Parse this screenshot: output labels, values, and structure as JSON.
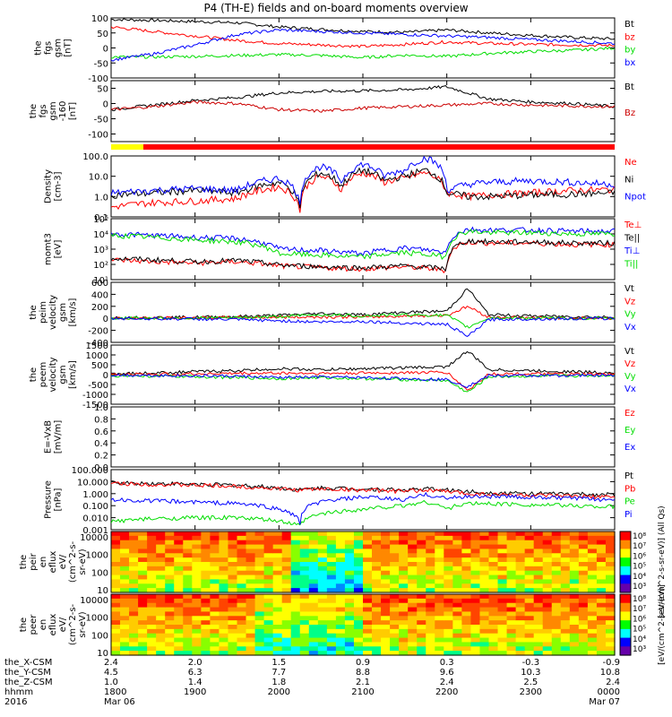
{
  "title": "P4 (TH-E) fields and on-board moments overview",
  "colors": {
    "black": "#000000",
    "red": "#ff0000",
    "blue": "#0000ff",
    "green": "#00dd00",
    "yellow": "#ffff00"
  },
  "chart_data": [
    {
      "id": "fgs_gsm",
      "type": "line",
      "ylabel": [
        "the",
        "fgs",
        "gsm",
        "[nT]"
      ],
      "ylim": [
        -100,
        100
      ],
      "yticks": [
        100,
        50,
        0,
        -50,
        -100
      ],
      "yticklabels": [
        "100",
        "50",
        "0",
        "-50",
        "-100"
      ],
      "x": [
        1800,
        1830,
        1900,
        1930,
        2000,
        2030,
        2100,
        2130,
        2200,
        2230,
        2300,
        2330,
        2400
      ],
      "series": [
        {
          "name": "Bt",
          "color": "#000000",
          "values": [
            95,
            92,
            88,
            84,
            70,
            62,
            55,
            52,
            60,
            50,
            42,
            35,
            30
          ]
        },
        {
          "name": "bz",
          "color": "#ff0000",
          "values": [
            70,
            55,
            40,
            25,
            15,
            10,
            5,
            12,
            20,
            15,
            12,
            10,
            8
          ]
        },
        {
          "name": "by",
          "color": "#00dd00",
          "values": [
            -30,
            -30,
            -28,
            -25,
            -22,
            -25,
            -32,
            -24,
            -28,
            -18,
            -12,
            -8,
            0
          ]
        },
        {
          "name": "bx",
          "color": "#0000ff",
          "values": [
            -40,
            -20,
            10,
            45,
            60,
            55,
            50,
            45,
            40,
            35,
            28,
            22,
            15
          ]
        }
      ]
    },
    {
      "id": "fgs_gsm_m160",
      "type": "line",
      "ylabel": [
        "the",
        "fgs",
        "gsm",
        "-160",
        "[nT]"
      ],
      "ylim": [
        -125,
        75
      ],
      "yticks": [
        50,
        0,
        -50,
        -100
      ],
      "yticklabels": [
        "50",
        "0",
        "-50",
        "-100"
      ],
      "x": [
        1800,
        1830,
        1900,
        1930,
        2000,
        2030,
        2100,
        2130,
        2200,
        2230,
        2300,
        2330,
        2400
      ],
      "series": [
        {
          "name": "Bt",
          "color": "#000000",
          "values": [
            -20,
            -5,
            10,
            20,
            35,
            40,
            42,
            45,
            55,
            15,
            5,
            0,
            -10
          ]
        },
        {
          "name": "Bz",
          "color": "#cc0000",
          "values": [
            -20,
            -10,
            5,
            0,
            -20,
            -25,
            -15,
            -10,
            -5,
            0,
            -5,
            -8,
            -10
          ]
        }
      ]
    },
    {
      "id": "density",
      "type": "line",
      "ylabel": [
        "Density",
        "[cm-3]"
      ],
      "ylog": true,
      "ylim": [
        0.1,
        100.0
      ],
      "yticks": [
        100.0,
        10.0,
        1.0,
        0.1
      ],
      "yticklabels": [
        "100.0",
        "10.0",
        "1.0",
        "0.1"
      ],
      "x": [
        1800,
        1830,
        1900,
        1930,
        2000,
        2015,
        2030,
        2045,
        2100,
        2115,
        2130,
        2145,
        2200,
        2215,
        2230,
        2300,
        2330,
        2400
      ],
      "series": [
        {
          "name": "Ne",
          "color": "#ff0000",
          "values": [
            0.3,
            0.5,
            0.6,
            0.8,
            3.0,
            0.2,
            10,
            2,
            15,
            5,
            8,
            15,
            1.5,
            1.0,
            1.2,
            1.5,
            2.0,
            2.2
          ]
        },
        {
          "name": "Ni",
          "color": "#000000",
          "values": [
            1.2,
            1.5,
            2.0,
            1.5,
            5.0,
            0.2,
            15,
            3,
            20,
            6,
            10,
            20,
            1.5,
            1.0,
            1.0,
            1.2,
            1.3,
            1.5
          ]
        },
        {
          "name": "Npot",
          "color": "#0000ff",
          "values": [
            1.5,
            2.0,
            2.5,
            2.0,
            8.0,
            0.3,
            30,
            5,
            40,
            10,
            20,
            80,
            2.0,
            4.0,
            5.0,
            6.0,
            5.0,
            4.0
          ]
        }
      ]
    },
    {
      "id": "mom_t3",
      "type": "line",
      "ylabel": [
        "momt3",
        "[eV]"
      ],
      "ylog": true,
      "ylim": [
        10,
        100000
      ],
      "yticks": [
        100000,
        10000,
        1000,
        100,
        10
      ],
      "yticklabels": [
        "10⁵",
        "10⁴",
        "10³",
        "10²",
        "10¹"
      ],
      "x": [
        1800,
        1830,
        1900,
        1930,
        2000,
        2030,
        2100,
        2130,
        2200,
        2215,
        2230,
        2300,
        2330,
        2400
      ],
      "series": [
        {
          "name": "Te⊥",
          "color": "#ff0000",
          "values": [
            200,
            150,
            120,
            150,
            80,
            60,
            50,
            70,
            40,
            3000,
            2500,
            2500,
            2000,
            2000
          ]
        },
        {
          "name": "Te||",
          "color": "#000000",
          "values": [
            250,
            200,
            150,
            180,
            90,
            70,
            60,
            80,
            50,
            3500,
            3000,
            3000,
            2500,
            2500
          ]
        },
        {
          "name": "Ti⊥",
          "color": "#0000ff",
          "values": [
            10000,
            8000,
            6000,
            5000,
            1000,
            800,
            500,
            1200,
            600,
            20000,
            18000,
            18000,
            15000,
            15000
          ]
        },
        {
          "name": "Ti||",
          "color": "#00dd00",
          "values": [
            8000,
            6000,
            4000,
            3000,
            500,
            400,
            300,
            600,
            300,
            15000,
            12000,
            12000,
            10000,
            10000
          ]
        }
      ]
    },
    {
      "id": "peim_velocity",
      "type": "line",
      "ylabel": [
        "the",
        "peim",
        "velocity",
        "gsm",
        "[km/s]"
      ],
      "ylim": [
        -400,
        600
      ],
      "yticks": [
        600,
        400,
        200,
        0,
        -200,
        -400
      ],
      "yticklabels": [
        "600",
        "400",
        "200",
        "0",
        "-200",
        "-400"
      ],
      "x": [
        1800,
        1830,
        1900,
        1930,
        2000,
        2030,
        2100,
        2130,
        2200,
        2215,
        2230,
        2300,
        2330,
        2400
      ],
      "series": [
        {
          "name": "Vt",
          "color": "#000000",
          "values": [
            10,
            15,
            20,
            30,
            50,
            80,
            60,
            100,
            120,
            500,
            60,
            40,
            30,
            20
          ]
        },
        {
          "name": "Vz",
          "color": "#ff0000",
          "values": [
            0,
            5,
            10,
            15,
            20,
            25,
            20,
            40,
            50,
            200,
            20,
            10,
            5,
            0
          ]
        },
        {
          "name": "Vy",
          "color": "#00dd00",
          "values": [
            0,
            5,
            5,
            10,
            30,
            60,
            40,
            60,
            50,
            -150,
            10,
            5,
            0,
            0
          ]
        },
        {
          "name": "Vx",
          "color": "#0000ff",
          "values": [
            0,
            -5,
            -10,
            -20,
            -40,
            -60,
            -50,
            -80,
            -100,
            -300,
            -20,
            -10,
            -5,
            0
          ]
        }
      ]
    },
    {
      "id": "peem_velocity",
      "type": "line",
      "ylabel": [
        "the",
        "peem",
        "velocity",
        "gsm",
        "[km/s]"
      ],
      "ylim": [
        -1500,
        1500
      ],
      "yticks": [
        1500,
        1000,
        500,
        0,
        -500,
        -1000,
        -1500
      ],
      "yticklabels": [
        "1500",
        "1000",
        "500",
        "0",
        "-500",
        "-1000",
        "-1500"
      ],
      "x": [
        1800,
        1830,
        1900,
        1930,
        2000,
        2030,
        2100,
        2130,
        2200,
        2215,
        2230,
        2300,
        2330,
        2400
      ],
      "series": [
        {
          "name": "Vt",
          "color": "#000000",
          "values": [
            50,
            80,
            150,
            200,
            300,
            250,
            300,
            350,
            400,
            1200,
            250,
            200,
            150,
            100
          ]
        },
        {
          "name": "Vz",
          "color": "#ff0000",
          "values": [
            0,
            20,
            40,
            60,
            80,
            60,
            80,
            100,
            120,
            -800,
            40,
            30,
            20,
            10
          ]
        },
        {
          "name": "Vy",
          "color": "#00dd00",
          "values": [
            -50,
            -80,
            -100,
            -150,
            -200,
            -150,
            -200,
            -250,
            -300,
            -900,
            -100,
            -80,
            -60,
            -40
          ]
        },
        {
          "name": "Vx",
          "color": "#0000ff",
          "values": [
            -20,
            -40,
            -60,
            -80,
            -150,
            -120,
            -150,
            -200,
            -250,
            -600,
            -60,
            -50,
            -40,
            -30
          ]
        }
      ]
    },
    {
      "id": "efield",
      "type": "line",
      "ylabel": [
        "E=-VxB",
        "[mV/m]"
      ],
      "ylim": [
        0.0,
        1.0
      ],
      "yticks": [
        1.0,
        0.8,
        0.6,
        0.4,
        0.2,
        0.0
      ],
      "yticklabels": [
        "1.0",
        "0.8",
        "0.6",
        "0.4",
        "0.2",
        "0.0"
      ],
      "series": [
        {
          "name": "Ez",
          "color": "#ff0000",
          "values": []
        },
        {
          "name": "Ey",
          "color": "#00dd00",
          "values": []
        },
        {
          "name": "Ex",
          "color": "#0000ff",
          "values": []
        }
      ]
    },
    {
      "id": "pressure",
      "type": "line",
      "ylabel": [
        "Pressure",
        "[nPa]"
      ],
      "ylog": true,
      "ylim": [
        0.001,
        100.0
      ],
      "yticks": [
        100.0,
        10.0,
        1.0,
        0.1,
        0.01,
        0.001
      ],
      "yticklabels": [
        "100.000",
        "10.000",
        "1.000",
        "0.100",
        "0.010",
        "0.001"
      ],
      "x": [
        1800,
        1830,
        1900,
        1930,
        2000,
        2015,
        2030,
        2100,
        2130,
        2145,
        2200,
        2215,
        2230,
        2300,
        2330,
        2400
      ],
      "series": [
        {
          "name": "Pt",
          "color": "#000000",
          "values": [
            8,
            7,
            6,
            5,
            3,
            2,
            3,
            2.5,
            2,
            2.5,
            2,
            1.5,
            1.2,
            1.0,
            0.9,
            0.8
          ]
        },
        {
          "name": "Pb",
          "color": "#ff0000",
          "values": [
            7,
            6,
            5,
            4,
            2.5,
            2,
            2.5,
            2,
            1.5,
            2,
            1.5,
            1.0,
            0.9,
            0.7,
            0.6,
            0.5
          ]
        },
        {
          "name": "Pe",
          "color": "#00dd00",
          "values": [
            0.005,
            0.008,
            0.01,
            0.01,
            0.005,
            0.002,
            0.02,
            0.05,
            0.1,
            0.2,
            0.05,
            0.15,
            0.15,
            0.12,
            0.1,
            0.08
          ]
        },
        {
          "name": "Pi",
          "color": "#0000ff",
          "values": [
            0.3,
            0.25,
            0.2,
            0.15,
            0.05,
            0.003,
            0.2,
            0.5,
            0.3,
            0.8,
            0.4,
            0.6,
            0.6,
            0.5,
            0.4,
            0.3
          ]
        }
      ]
    },
    {
      "id": "peir_en_eflux",
      "type": "heatmap",
      "ylabel": [
        "the",
        "peir",
        "en",
        "eflux",
        "eV/",
        "(cm^2-s-",
        "sr-eV)"
      ],
      "ylog": true,
      "ylim": [
        7,
        20000
      ],
      "yticks": [
        10000,
        1000,
        100,
        10
      ],
      "yticklabels": [
        "10000",
        "1000",
        "100",
        "10"
      ],
      "colorbar_label": "[eV/(cm^2-s-sr-eV)] (All Qs)",
      "colorbar_ticks": [
        "10⁸",
        "10⁷",
        "10⁶",
        "10⁵",
        "10⁴",
        "10³"
      ]
    },
    {
      "id": "peer_en_eflux",
      "type": "heatmap",
      "ylabel": [
        "the",
        "peer",
        "en",
        "eflux",
        "eV/",
        "(cm^2-s-",
        "sr-eV)"
      ],
      "ylog": true,
      "ylim": [
        7,
        20000
      ],
      "yticks": [
        10000,
        1000,
        100,
        10
      ],
      "yticklabels": [
        "10000",
        "1000",
        "100",
        "10"
      ],
      "colorbar_label": "[eV/(cm^2-s-sr-eV)]",
      "colorbar_ticks": [
        "10⁸",
        "10⁷",
        "10⁶",
        "10⁵",
        "10⁴",
        "10³"
      ]
    }
  ],
  "bottom_axis": {
    "row_labels": [
      "the_X-CSM",
      "the_Y-CSM",
      "the_Z-CSM",
      "hhmm",
      "2016"
    ],
    "ticks": [
      {
        "x_csm": "2.4",
        "y_csm": "4.5",
        "z_csm": "1.0",
        "hhmm": "1800",
        "date": "Mar 06"
      },
      {
        "x_csm": "2.0",
        "y_csm": "6.3",
        "z_csm": "1.4",
        "hhmm": "1900",
        "date": ""
      },
      {
        "x_csm": "1.5",
        "y_csm": "7.7",
        "z_csm": "1.8",
        "hhmm": "2000",
        "date": ""
      },
      {
        "x_csm": "0.9",
        "y_csm": "8.8",
        "z_csm": "2.1",
        "hhmm": "2100",
        "date": ""
      },
      {
        "x_csm": "0.3",
        "y_csm": "9.6",
        "z_csm": "2.4",
        "hhmm": "2200",
        "date": ""
      },
      {
        "x_csm": "-0.3",
        "y_csm": "10.3",
        "z_csm": "2.5",
        "hhmm": "2300",
        "date": ""
      },
      {
        "x_csm": "-0.9",
        "y_csm": "10.8",
        "z_csm": "2.4",
        "hhmm": "0000",
        "date": "Mar 07"
      }
    ]
  }
}
